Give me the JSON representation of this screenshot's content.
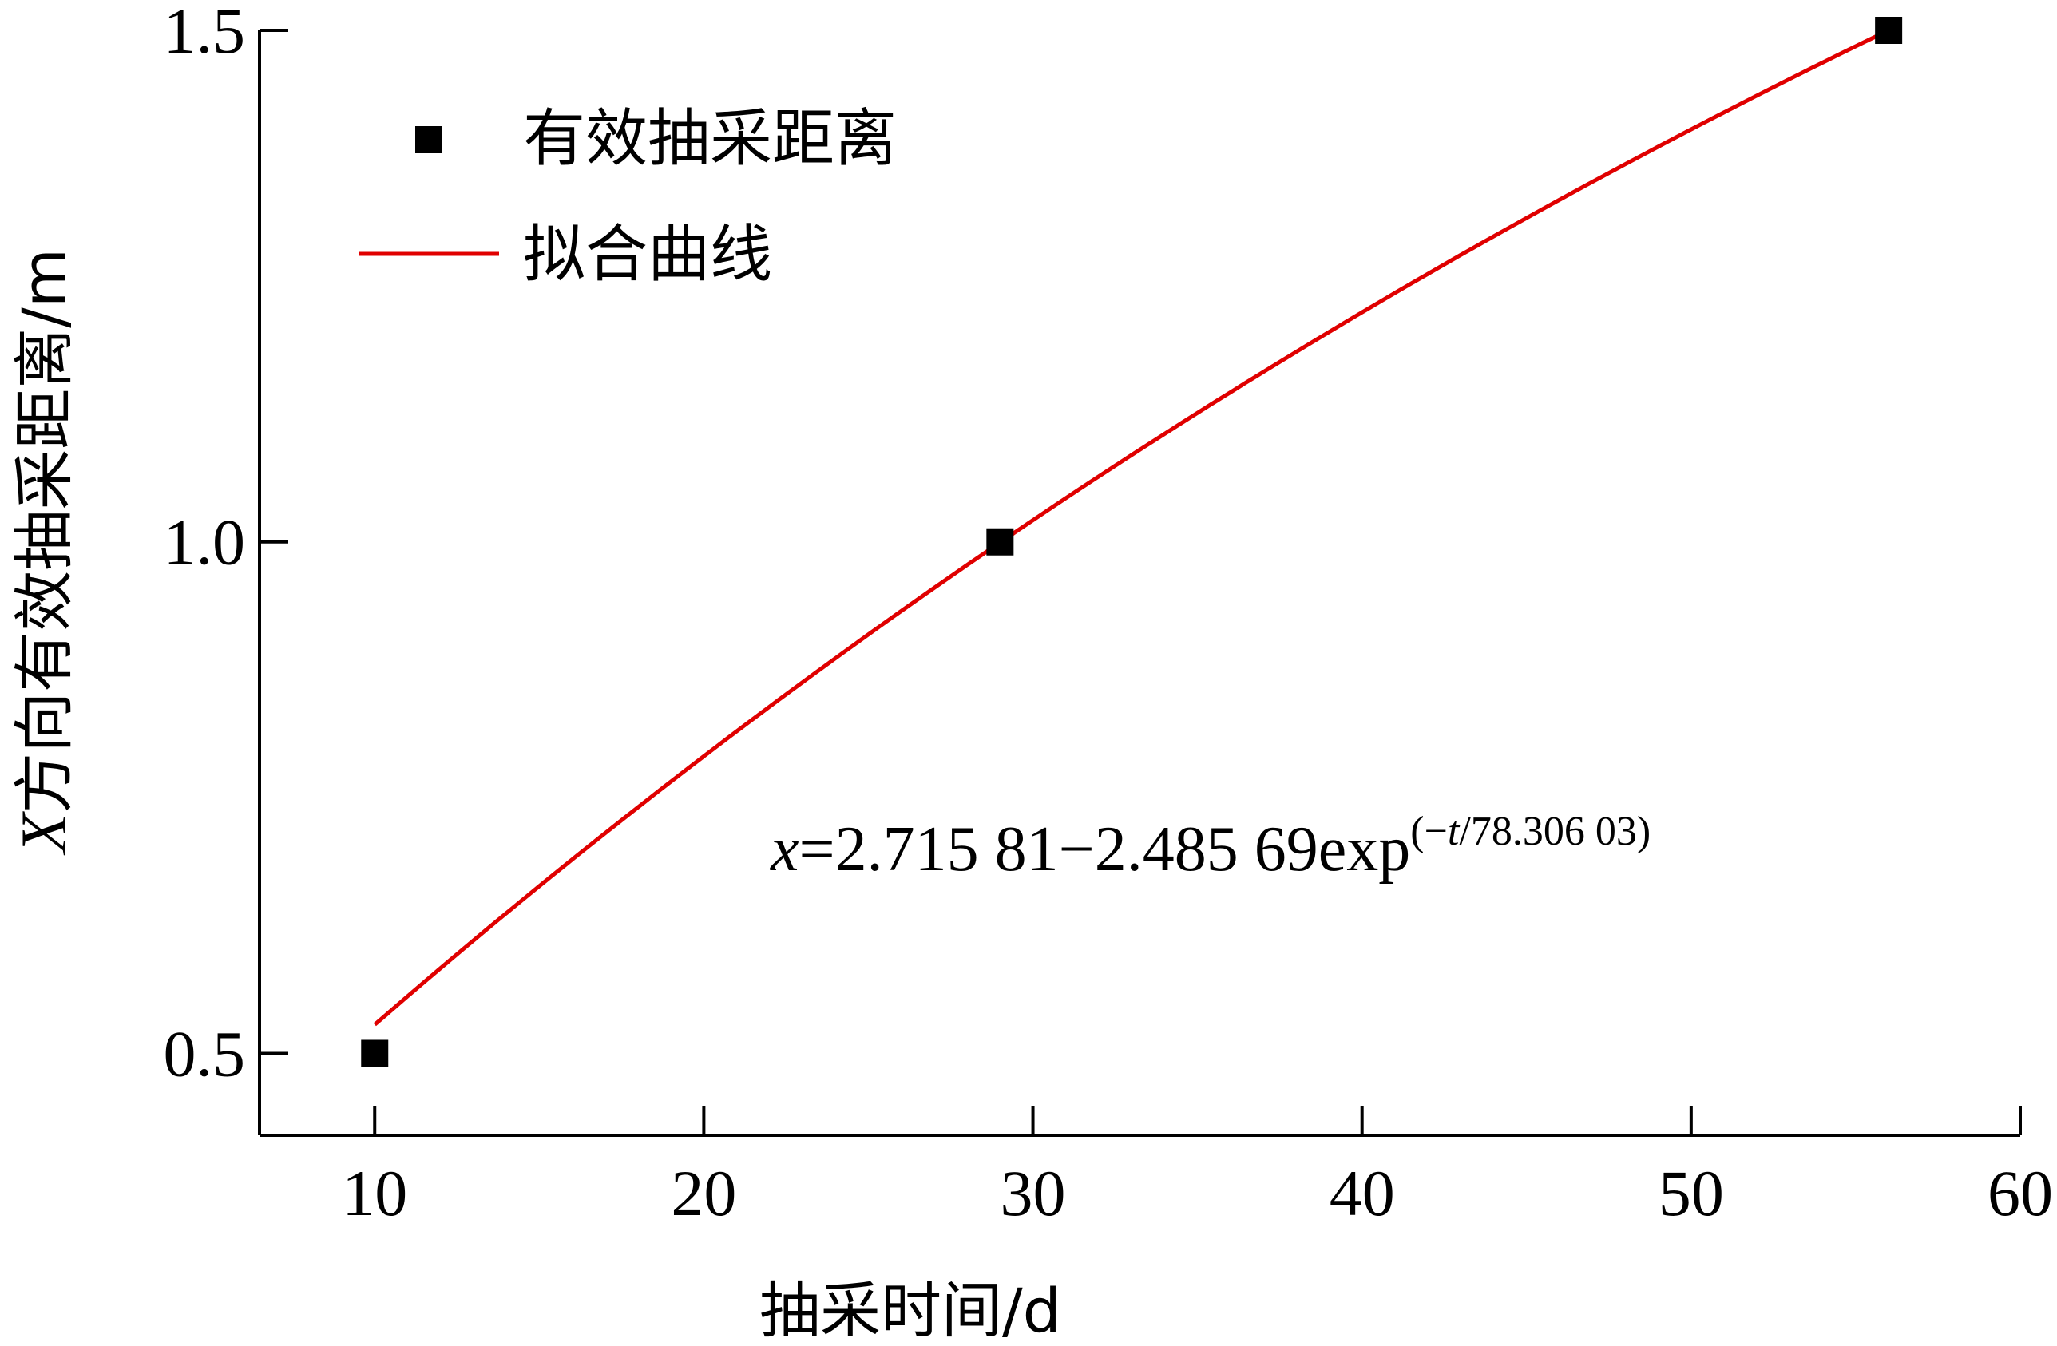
{
  "chart_data": {
    "type": "scatter",
    "xlabel": "抽采时间/d",
    "ylabel_italic": "X",
    "ylabel_rest": "方向有效抽采距离/m",
    "xlim": [
      6.5,
      60
    ],
    "ylim": [
      0.42,
      1.5
    ],
    "x_ticks": [
      10,
      20,
      30,
      40,
      50,
      60
    ],
    "x_tick_labels": [
      "10",
      "20",
      "30",
      "40",
      "50",
      "60"
    ],
    "y_ticks": [
      0.5,
      1.0,
      1.5
    ],
    "y_tick_labels": [
      "0.5",
      "1.0",
      "1.5"
    ],
    "series": [
      {
        "name": "有效抽采距离",
        "kind": "scatter",
        "marker": "square",
        "color": "#000000",
        "x": [
          10,
          29,
          56
        ],
        "y": [
          0.5,
          1.0,
          1.5
        ]
      },
      {
        "name": "拟合曲线",
        "kind": "line",
        "color": "#e00000",
        "model": {
          "a": 2.71581,
          "b": 2.48569,
          "tau": 78.30603
        },
        "x_range": [
          10,
          56
        ]
      }
    ],
    "legend_position": "top-left",
    "grid": false,
    "annotation": {
      "var": "x",
      "eq_main": "=2.715 81−2.485 69exp",
      "sup_open": "(−",
      "sup_var": "t",
      "sup_rest": "/78.306 03)"
    }
  }
}
